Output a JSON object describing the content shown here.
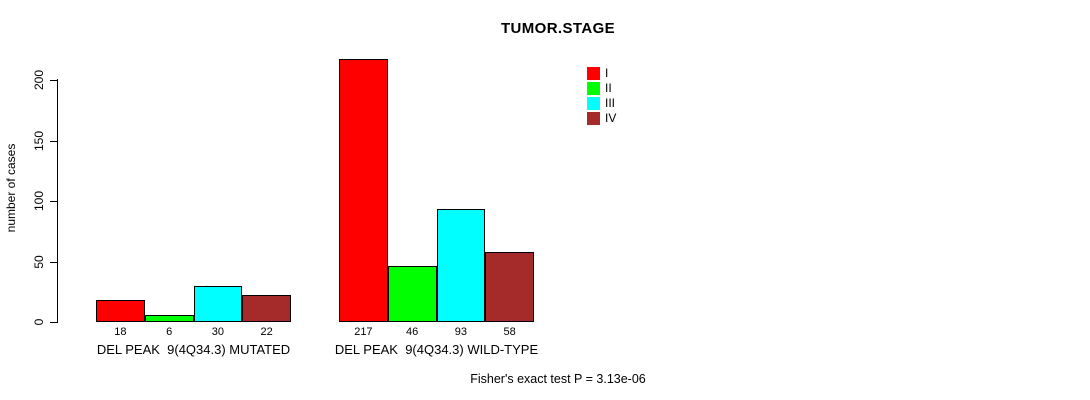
{
  "chart_data": {
    "type": "bar",
    "title": "TUMOR.STAGE",
    "ylabel": "number of cases",
    "xlabel": "",
    "ylim": [
      0,
      200
    ],
    "yticks": [
      0,
      50,
      100,
      150,
      200
    ],
    "grid": false,
    "legend_position": "top-right",
    "categories": [
      "I",
      "II",
      "III",
      "IV"
    ],
    "colors": [
      "#FF0000",
      "#00FF00",
      "#00FFFF",
      "#A52A2A"
    ],
    "groups": [
      {
        "label": "DEL PEAK  9(4Q34.3) MUTATED",
        "values": [
          18,
          6,
          30,
          22
        ]
      },
      {
        "label": "DEL PEAK  9(4Q34.3) WILD-TYPE",
        "values": [
          217,
          46,
          93,
          58
        ]
      }
    ],
    "value_labels_shown": true,
    "footnote": "Fisher's exact test P = 3.13e-06"
  }
}
